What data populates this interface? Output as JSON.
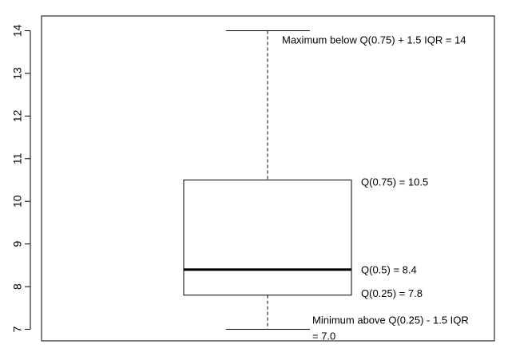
{
  "chart_data": {
    "type": "box",
    "title": "",
    "xlabel": "",
    "ylabel": "",
    "ylim": [
      6.8,
      14.3
    ],
    "yticks": [
      7,
      8,
      9,
      10,
      11,
      12,
      13,
      14
    ],
    "box": {
      "whisker_low": 7.0,
      "q1": 7.8,
      "median": 8.4,
      "q3": 10.5,
      "whisker_high": 14
    },
    "annotations": {
      "max": "Maximum below Q(0.75) + 1.5 IQR = 14",
      "q3": "Q(0.75) = 10.5",
      "median": "Q(0.5) = 8.4",
      "q1": "Q(0.25) = 7.8",
      "min_line1": "Minimum above Q(0.25) - 1.5 IQR",
      "min_line2": "= 7.0"
    }
  }
}
